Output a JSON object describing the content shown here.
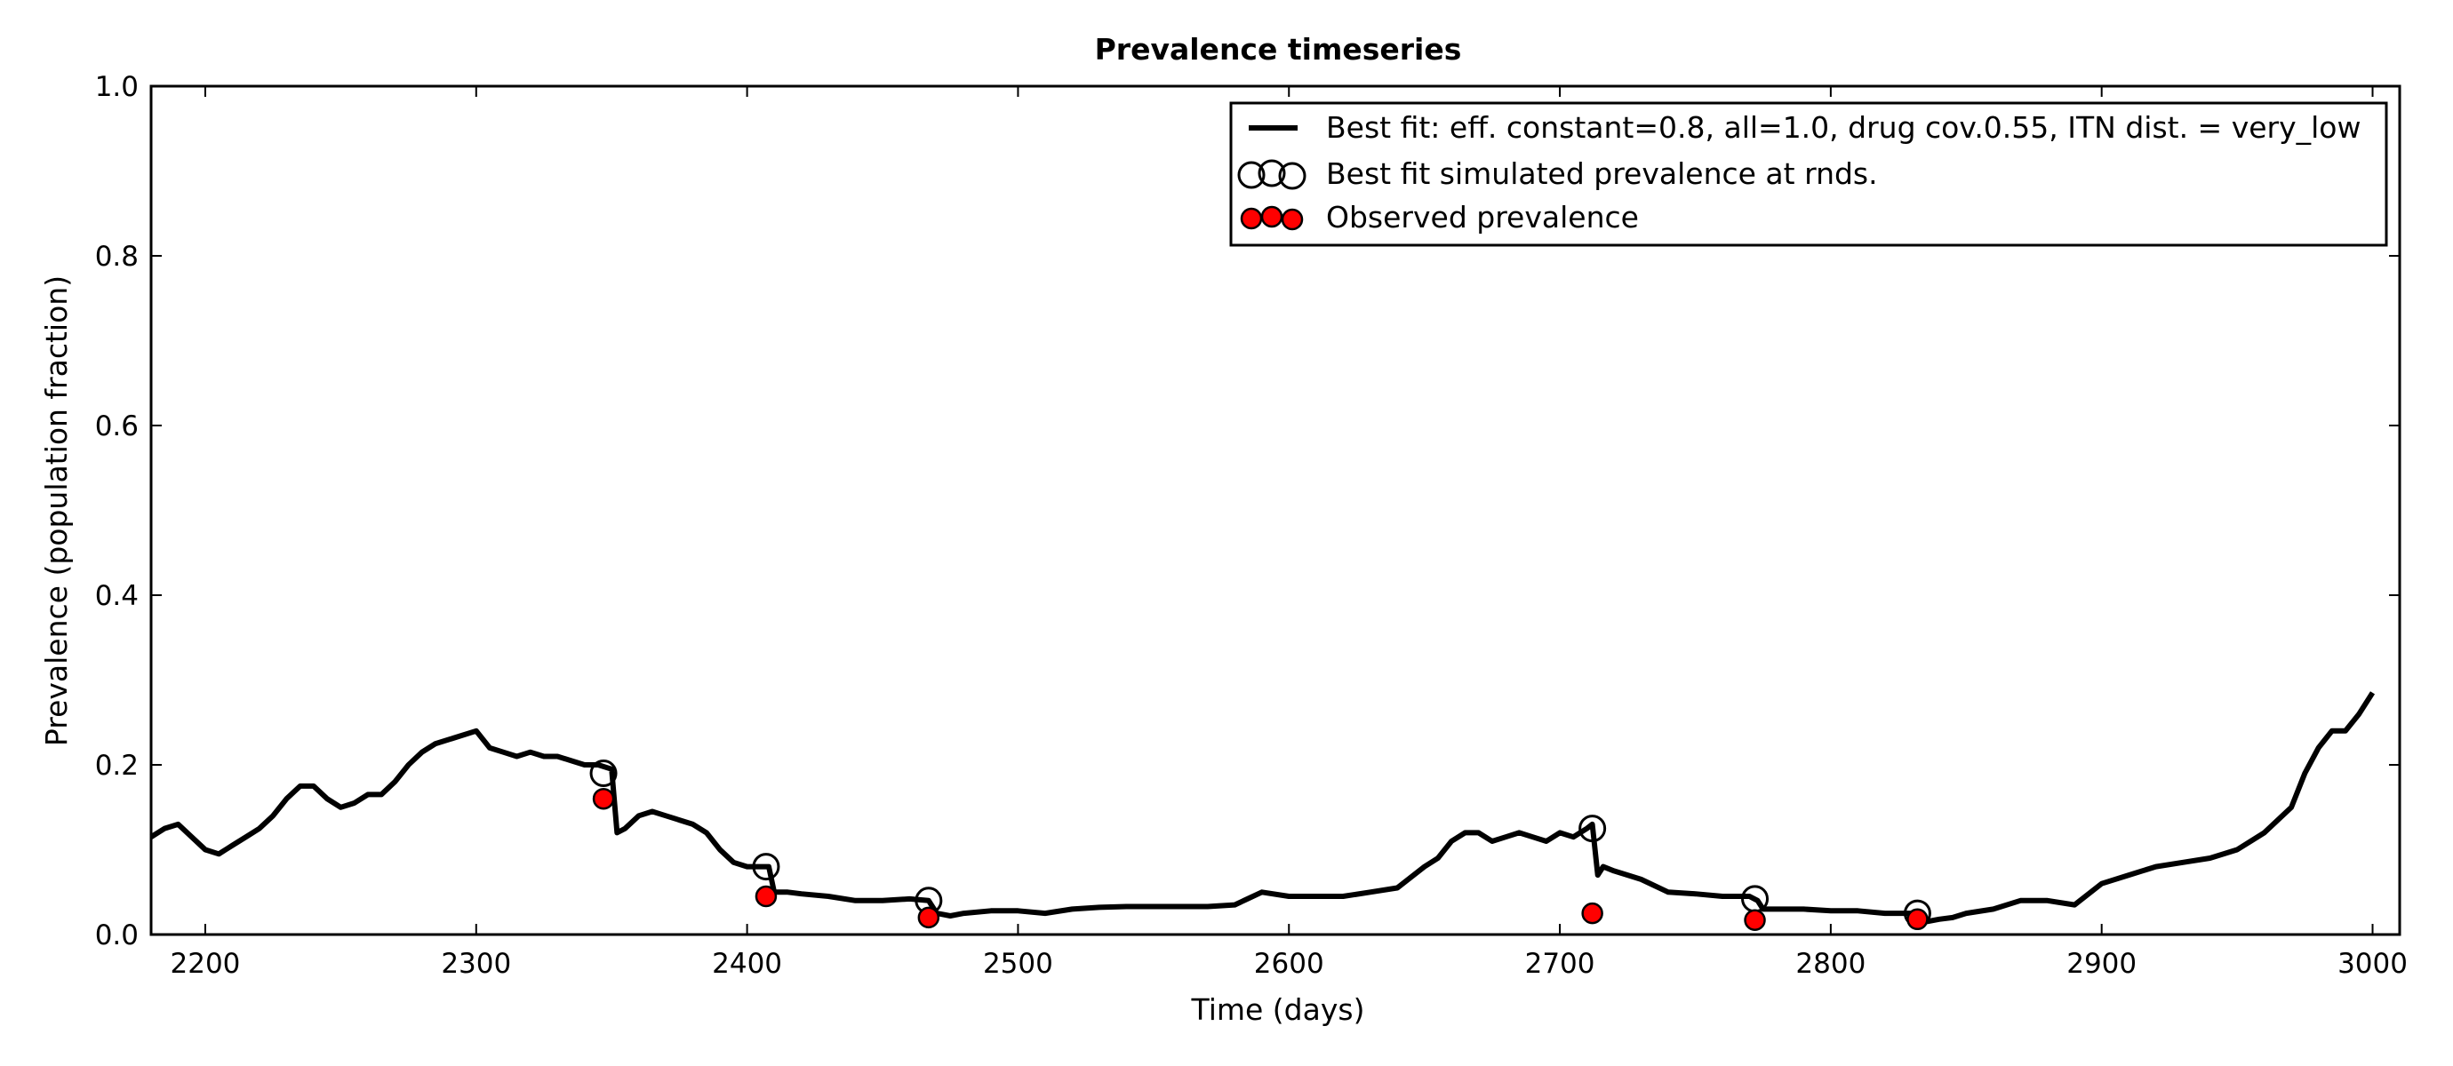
{
  "chart_data": {
    "type": "line",
    "title": "Prevalence timeseries",
    "xlabel": "Time (days)",
    "ylabel": "Prevalence (population fraction)",
    "xlim": [
      2180,
      3010
    ],
    "ylim": [
      0.0,
      1.0
    ],
    "xticks": [
      2200,
      2300,
      2400,
      2500,
      2600,
      2700,
      2800,
      2900,
      3000
    ],
    "yticks": [
      0.0,
      0.2,
      0.4,
      0.6,
      0.8,
      1.0
    ],
    "xtick_labels": [
      "2200",
      "2300",
      "2400",
      "2500",
      "2600",
      "2700",
      "2800",
      "2900",
      "3000"
    ],
    "ytick_labels": [
      "0.0",
      "0.2",
      "0.4",
      "0.6",
      "0.8",
      "1.0"
    ],
    "grid": false,
    "legend_position": "top-right",
    "series": [
      {
        "name": "Best fit: eff. constant=0.8, all=1.0, drug cov.0.55, ITN dist. = very_low",
        "style": "line",
        "color": "#000000",
        "x": [
          2180,
          2185,
          2190,
          2195,
          2200,
          2205,
          2210,
          2215,
          2220,
          2225,
          2230,
          2235,
          2240,
          2245,
          2250,
          2255,
          2260,
          2265,
          2270,
          2275,
          2280,
          2285,
          2290,
          2295,
          2300,
          2305,
          2310,
          2315,
          2320,
          2325,
          2330,
          2335,
          2340,
          2345,
          2350,
          2352,
          2355,
          2360,
          2365,
          2370,
          2375,
          2380,
          2385,
          2390,
          2395,
          2400,
          2405,
          2408,
          2410,
          2415,
          2420,
          2430,
          2440,
          2450,
          2460,
          2467,
          2470,
          2475,
          2480,
          2490,
          2500,
          2510,
          2520,
          2530,
          2540,
          2550,
          2560,
          2570,
          2580,
          2590,
          2600,
          2610,
          2620,
          2630,
          2640,
          2650,
          2655,
          2660,
          2665,
          2670,
          2675,
          2680,
          2685,
          2690,
          2695,
          2700,
          2705,
          2710,
          2712,
          2714,
          2716,
          2720,
          2725,
          2730,
          2740,
          2750,
          2760,
          2765,
          2770,
          2773,
          2775,
          2780,
          2790,
          2800,
          2810,
          2820,
          2830,
          2835,
          2840,
          2845,
          2850,
          2860,
          2870,
          2880,
          2890,
          2900,
          2910,
          2920,
          2930,
          2940,
          2950,
          2960,
          2970,
          2975,
          2980,
          2985,
          2990,
          2995,
          3000
        ],
        "y": [
          0.115,
          0.125,
          0.13,
          0.115,
          0.1,
          0.095,
          0.105,
          0.115,
          0.125,
          0.14,
          0.16,
          0.175,
          0.175,
          0.16,
          0.15,
          0.155,
          0.165,
          0.165,
          0.18,
          0.2,
          0.215,
          0.225,
          0.23,
          0.235,
          0.24,
          0.22,
          0.215,
          0.21,
          0.215,
          0.21,
          0.21,
          0.205,
          0.2,
          0.2,
          0.195,
          0.12,
          0.125,
          0.14,
          0.145,
          0.14,
          0.135,
          0.13,
          0.12,
          0.1,
          0.085,
          0.08,
          0.08,
          0.08,
          0.05,
          0.05,
          0.048,
          0.045,
          0.04,
          0.04,
          0.042,
          0.04,
          0.025,
          0.022,
          0.025,
          0.028,
          0.028,
          0.025,
          0.03,
          0.032,
          0.033,
          0.033,
          0.033,
          0.033,
          0.035,
          0.05,
          0.045,
          0.045,
          0.045,
          0.05,
          0.055,
          0.08,
          0.09,
          0.11,
          0.12,
          0.12,
          0.11,
          0.115,
          0.12,
          0.115,
          0.11,
          0.12,
          0.115,
          0.125,
          0.13,
          0.07,
          0.08,
          0.075,
          0.07,
          0.065,
          0.05,
          0.048,
          0.045,
          0.045,
          0.045,
          0.04,
          0.03,
          0.03,
          0.03,
          0.028,
          0.028,
          0.025,
          0.025,
          0.015,
          0.018,
          0.02,
          0.025,
          0.03,
          0.04,
          0.04,
          0.035,
          0.06,
          0.07,
          0.08,
          0.085,
          0.09,
          0.1,
          0.12,
          0.15,
          0.19,
          0.22,
          0.24,
          0.24,
          0.26,
          0.285
        ]
      },
      {
        "name": "Best fit simulated prevalence at rnds.",
        "style": "open-circle",
        "color": "#000000",
        "x": [
          2347,
          2407,
          2467,
          2712,
          2772,
          2832
        ],
        "y": [
          0.19,
          0.08,
          0.04,
          0.125,
          0.042,
          0.025
        ]
      },
      {
        "name": "Observed prevalence",
        "style": "filled-circle",
        "color": "#ff0000",
        "x": [
          2347,
          2407,
          2467,
          2712,
          2772,
          2832
        ],
        "y": [
          0.16,
          0.045,
          0.02,
          0.025,
          0.017,
          0.018
        ]
      }
    ]
  }
}
